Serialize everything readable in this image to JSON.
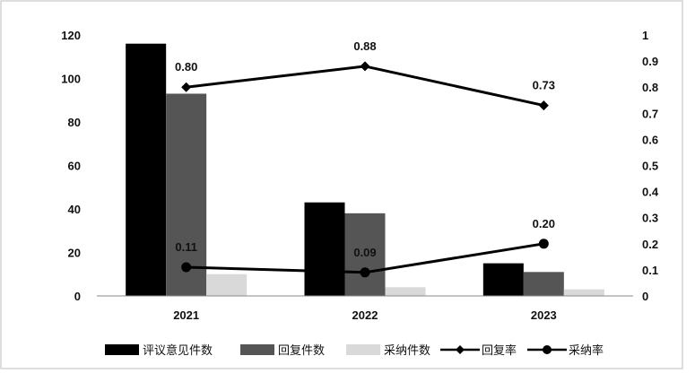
{
  "chart_data": {
    "type": "bar",
    "categories": [
      "2021",
      "2022",
      "2023"
    ],
    "series": [
      {
        "name": "评议意见件数",
        "kind": "bar",
        "axis": "left",
        "color": "#000000",
        "values": [
          116,
          43,
          15
        ]
      },
      {
        "name": "回复件数",
        "kind": "bar",
        "axis": "left",
        "color": "#555555",
        "values": [
          93,
          38,
          11
        ]
      },
      {
        "name": "采纳件数",
        "kind": "bar",
        "axis": "left",
        "color": "#d9d9d9",
        "values": [
          10,
          4,
          3
        ]
      },
      {
        "name": "回复率",
        "kind": "line",
        "axis": "right",
        "marker": "diamond",
        "color": "#000000",
        "values": [
          0.8,
          0.88,
          0.73
        ],
        "labels": [
          "0.80",
          "0.88",
          "0.73"
        ]
      },
      {
        "name": "采纳率",
        "kind": "line",
        "axis": "right",
        "marker": "circle",
        "color": "#000000",
        "values": [
          0.11,
          0.09,
          0.2
        ],
        "labels": [
          "0.11",
          "0.09",
          "0.20"
        ]
      }
    ],
    "y_left": {
      "range": [
        0,
        120
      ],
      "ticks": [
        "0",
        "20",
        "40",
        "60",
        "80",
        "100",
        "120"
      ]
    },
    "y_right": {
      "range": [
        0,
        1
      ],
      "ticks": [
        "0",
        "0.1",
        "0.2",
        "0.3",
        "0.4",
        "0.5",
        "0.6",
        "0.7",
        "0.8",
        "0.9",
        "1"
      ]
    },
    "grid": false,
    "legend_position": "bottom"
  }
}
